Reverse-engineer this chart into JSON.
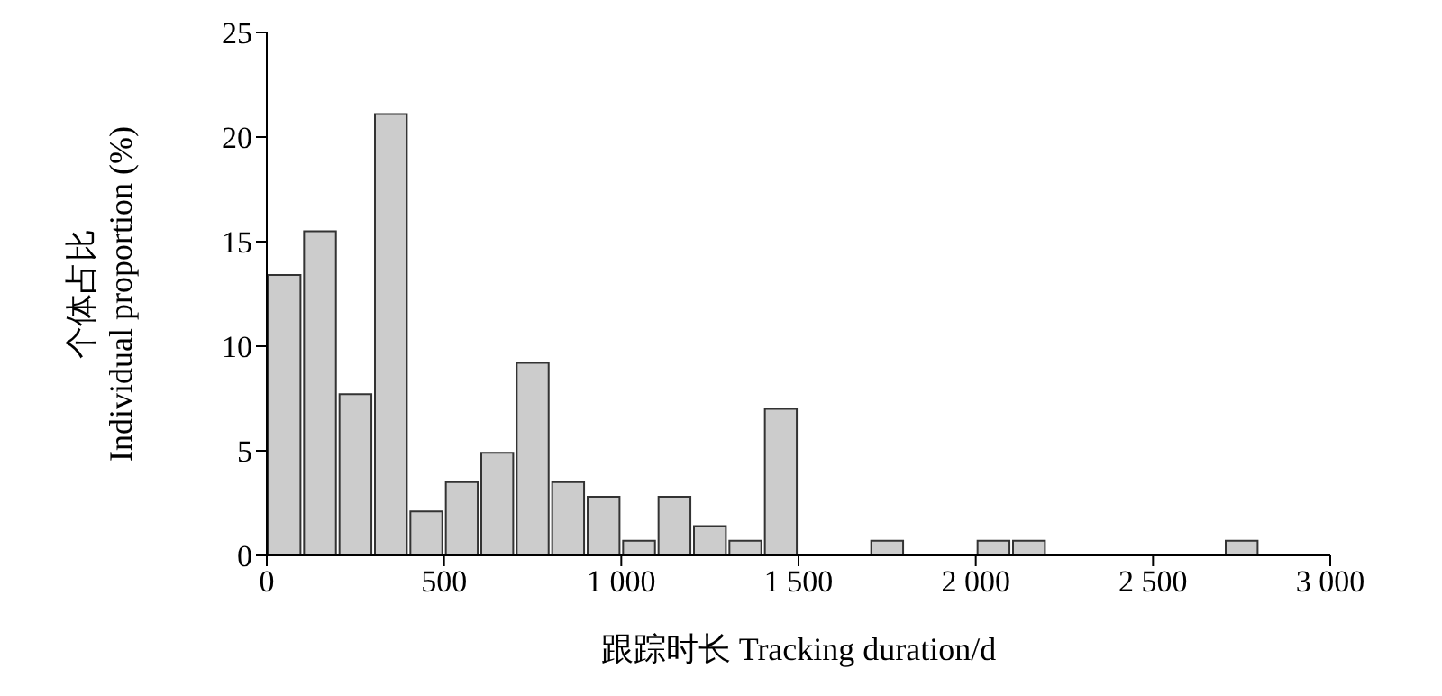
{
  "chart_data": {
    "type": "histogram",
    "xlabel": "跟踪时长 Tracking duration/d",
    "ylabel": "个体占比\nIndividual proportion (%)",
    "bins": [
      0,
      100,
      200,
      300,
      400,
      500,
      600,
      700,
      800,
      900,
      1000,
      1100,
      1200,
      1300,
      1400,
      1500,
      1600,
      1700,
      1800,
      1900,
      2000,
      2100,
      2200,
      2300,
      2400,
      2500,
      2600,
      2700,
      2800,
      2900,
      3000
    ],
    "values": [
      13.4,
      15.5,
      7.7,
      21.1,
      2.1,
      3.5,
      4.9,
      9.2,
      3.5,
      2.8,
      0.7,
      2.8,
      1.4,
      0.7,
      7.0,
      0,
      0,
      0.7,
      0,
      0,
      0.7,
      0.7,
      0,
      0,
      0,
      0,
      0,
      0.7,
      0,
      0
    ],
    "color": "#cccccc",
    "xlim": [
      0,
      3000
    ],
    "xticks": [
      0,
      500,
      {
        "value": 1000,
        "label": "1 000"
      },
      {
        "value": 1500,
        "label": "1 500"
      },
      {
        "value": 2000,
        "label": "2 000"
      },
      {
        "value": 2500,
        "label": "2 500"
      },
      {
        "value": 3000,
        "label": "3 000"
      }
    ],
    "ylim": [
      0,
      25
    ],
    "yticks": [
      0,
      5,
      10,
      15,
      20,
      25
    ],
    "grid": false,
    "legend": false
  }
}
